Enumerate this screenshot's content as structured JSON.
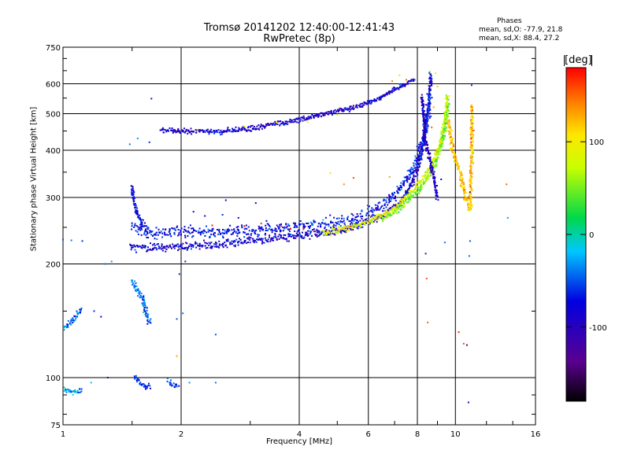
{
  "header": {
    "title": "Tromsø 20141202 12:40:00-12:41:43",
    "subtitle": "RwPretec (8p)",
    "stats_title": "Phases",
    "stats_o": "mean, sd,O: -77.9, 21.8",
    "stats_x": "mean, sd,X: 88.4, 27.2"
  },
  "chart_data": {
    "type": "scatter",
    "xlabel": "Frequency [MHz]",
    "ylabel": "Stationary phase Virtual Height [km]",
    "xscale": "log",
    "yscale": "log",
    "xlim": [
      1,
      16
    ],
    "ylim": [
      75,
      750
    ],
    "x_ticks": [
      1,
      2,
      4,
      6,
      8,
      10,
      16
    ],
    "x_tick_labels": [
      "1",
      "2",
      "4",
      "6",
      "8",
      "10",
      "16"
    ],
    "y_ticks": [
      75,
      100,
      200,
      300,
      400,
      500,
      600,
      750
    ],
    "y_tick_labels": [
      "75",
      "100",
      "200",
      "300",
      "400",
      "500",
      "600",
      "750"
    ],
    "grid": true,
    "colorbar": {
      "label": "[deg]",
      "range": [
        -180,
        180
      ],
      "ticks": [
        100,
        0,
        -100
      ],
      "tick_labels": [
        "100",
        "0",
        "-100"
      ]
    },
    "traces": [
      {
        "name": "",
        "phase": -85,
        "spread": 0.012,
        "points": [
          [
            1.48,
            222
          ],
          [
            1.7,
            221
          ],
          [
            2.0,
            222
          ],
          [
            2.5,
            225
          ],
          [
            3.0,
            230
          ],
          [
            3.5,
            234
          ],
          [
            4.0,
            238
          ],
          [
            4.5,
            241
          ],
          [
            5.0,
            244
          ],
          [
            5.5,
            250
          ],
          [
            6.0,
            258
          ],
          [
            6.5,
            268
          ],
          [
            7.0,
            282
          ],
          [
            7.4,
            300
          ],
          [
            7.8,
            330
          ],
          [
            8.1,
            370
          ],
          [
            8.3,
            420
          ],
          [
            8.45,
            470
          ],
          [
            8.55,
            520
          ],
          [
            8.62,
            580
          ],
          [
            8.65,
            640
          ]
        ]
      },
      {
        "name": "",
        "phase": -70,
        "spread": 0.018,
        "points": [
          [
            1.5,
            250
          ],
          [
            1.7,
            240
          ],
          [
            2.0,
            245
          ],
          [
            2.4,
            242
          ],
          [
            3.0,
            245
          ],
          [
            3.5,
            248
          ],
          [
            4.0,
            250
          ],
          [
            4.5,
            253
          ],
          [
            5.0,
            257
          ],
          [
            5.5,
            263
          ],
          [
            6.0,
            272
          ],
          [
            6.5,
            285
          ],
          [
            7.0,
            305
          ],
          [
            7.5,
            335
          ],
          [
            7.9,
            370
          ],
          [
            8.2,
            410
          ],
          [
            8.4,
            460
          ],
          [
            8.55,
            520
          ],
          [
            8.6,
            560
          ]
        ]
      },
      {
        "name": "",
        "phase": -90,
        "spread": 0.008,
        "points": [
          [
            1.78,
            455
          ],
          [
            2.0,
            450
          ],
          [
            2.4,
            448
          ],
          [
            2.8,
            452
          ],
          [
            3.2,
            462
          ],
          [
            3.6,
            472
          ],
          [
            4.0,
            482
          ],
          [
            4.5,
            496
          ],
          [
            5.0,
            508
          ],
          [
            5.5,
            520
          ],
          [
            6.0,
            535
          ],
          [
            6.5,
            555
          ],
          [
            7.0,
            580
          ],
          [
            7.5,
            600
          ],
          [
            7.9,
            620
          ]
        ]
      },
      {
        "name": "",
        "phase": 85,
        "spread": 0.01,
        "points": [
          [
            4.6,
            242
          ],
          [
            5.0,
            246
          ],
          [
            5.5,
            251
          ],
          [
            6.0,
            258
          ],
          [
            6.5,
            268
          ],
          [
            7.0,
            282
          ],
          [
            7.5,
            300
          ],
          [
            8.0,
            322
          ],
          [
            8.4,
            345
          ],
          [
            8.8,
            375
          ],
          [
            9.1,
            410
          ],
          [
            9.3,
            450
          ],
          [
            9.45,
            500
          ],
          [
            9.55,
            560
          ]
        ]
      },
      {
        "name": "",
        "phase": 50,
        "spread": 0.01,
        "points": [
          [
            6.5,
            262
          ],
          [
            7.0,
            275
          ],
          [
            7.5,
            292
          ],
          [
            8.0,
            312
          ],
          [
            8.4,
            332
          ],
          [
            8.8,
            360
          ],
          [
            9.1,
            395
          ],
          [
            9.35,
            440
          ],
          [
            9.5,
            490
          ],
          [
            9.6,
            540
          ]
        ]
      },
      {
        "name": "",
        "phase": -95,
        "spread": 0.01,
        "points": [
          [
            8.2,
            560
          ],
          [
            8.3,
            500
          ],
          [
            8.35,
            450
          ],
          [
            8.4,
            420
          ],
          [
            8.55,
            390
          ],
          [
            8.7,
            360
          ],
          [
            8.8,
            340
          ],
          [
            8.9,
            320
          ],
          [
            9.0,
            300
          ]
        ]
      },
      {
        "name": "",
        "phase": -75,
        "spread": 0.01,
        "points": [
          [
            1.5,
            320
          ],
          [
            1.52,
            290
          ],
          [
            1.55,
            270
          ],
          [
            1.6,
            255
          ],
          [
            1.65,
            245
          ]
        ]
      },
      {
        "name": "",
        "phase": -45,
        "spread": 0.012,
        "points": [
          [
            1.5,
            180
          ],
          [
            1.55,
            170
          ],
          [
            1.6,
            162
          ],
          [
            1.62,
            150
          ],
          [
            1.65,
            142
          ],
          [
            1.68,
            140
          ]
        ]
      },
      {
        "name": "",
        "phase": -40,
        "spread": 0.01,
        "points": [
          [
            1.0,
            135
          ],
          [
            1.05,
            140
          ],
          [
            1.1,
            150
          ],
          [
            1.12,
            148
          ]
        ]
      },
      {
        "name": "",
        "phase": -30,
        "spread": 0.008,
        "points": [
          [
            1.0,
            93
          ],
          [
            1.06,
            92
          ],
          [
            1.12,
            93
          ]
        ]
      },
      {
        "name": "",
        "phase": -60,
        "spread": 0.01,
        "points": [
          [
            1.52,
            100
          ],
          [
            1.6,
            96
          ],
          [
            1.67,
            94
          ]
        ]
      },
      {
        "name": "",
        "phase": -55,
        "spread": 0.01,
        "points": [
          [
            1.85,
            98
          ],
          [
            1.92,
            95
          ],
          [
            1.97,
            96
          ]
        ]
      },
      {
        "name": "",
        "phase": 120,
        "spread": 0.012,
        "points": [
          [
            9.6,
            480
          ],
          [
            9.7,
            440
          ],
          [
            9.8,
            410
          ],
          [
            10.0,
            380
          ],
          [
            10.3,
            350
          ],
          [
            10.6,
            300
          ],
          [
            10.9,
            280
          ],
          [
            11.0,
            420
          ],
          [
            11.05,
            520
          ]
        ]
      }
    ],
    "scattered_points": [
      [
        1.0,
        232,
        -50
      ],
      [
        1.05,
        231,
        -40
      ],
      [
        1.12,
        230,
        -60
      ],
      [
        1.28,
        200,
        -40
      ],
      [
        1.33,
        203,
        -30
      ],
      [
        1.2,
        150,
        -60
      ],
      [
        1.25,
        145,
        -70
      ],
      [
        1.18,
        97,
        -20
      ],
      [
        1.3,
        100,
        -100
      ],
      [
        1.48,
        415,
        -40
      ],
      [
        1.55,
        430,
        -30
      ],
      [
        1.66,
        420,
        -60
      ],
      [
        1.68,
        548,
        -140
      ],
      [
        1.95,
        143,
        -50
      ],
      [
        1.95,
        114,
        130
      ],
      [
        1.98,
        188,
        -60
      ],
      [
        2.02,
        148,
        -40
      ],
      [
        2.05,
        203,
        -60
      ],
      [
        2.1,
        97,
        -30
      ],
      [
        2.15,
        275,
        -90
      ],
      [
        2.3,
        268,
        -80
      ],
      [
        2.45,
        130,
        -50
      ],
      [
        2.45,
        97,
        -40
      ],
      [
        2.55,
        270,
        -60
      ],
      [
        2.6,
        295,
        -70
      ],
      [
        2.8,
        265,
        -80
      ],
      [
        3.1,
        290,
        -90
      ],
      [
        3.3,
        260,
        -70
      ],
      [
        4.8,
        348,
        110
      ],
      [
        5.2,
        325,
        140
      ],
      [
        5.5,
        338,
        160
      ],
      [
        6.8,
        340,
        130
      ],
      [
        8.4,
        213,
        -140
      ],
      [
        8.45,
        183,
        160
      ],
      [
        8.5,
        140,
        150
      ],
      [
        9.4,
        228,
        -40
      ],
      [
        9.2,
        335,
        -80
      ],
      [
        9.5,
        450,
        60
      ],
      [
        10.2,
        132,
        170
      ],
      [
        10.5,
        123,
        160
      ],
      [
        10.7,
        122,
        -140
      ],
      [
        10.8,
        86,
        -110
      ],
      [
        10.9,
        230,
        -50
      ],
      [
        10.85,
        210,
        -40
      ],
      [
        11.0,
        595,
        -60
      ],
      [
        10.9,
        310,
        -150
      ],
      [
        13.5,
        325,
        150
      ],
      [
        13.6,
        265,
        -30
      ],
      [
        7.2,
        632,
        110
      ],
      [
        6.9,
        610,
        140
      ],
      [
        7.5,
        615,
        150
      ],
      [
        5.0,
        497,
        80
      ],
      [
        4.2,
        475,
        90
      ],
      [
        3.5,
        474,
        100
      ],
      [
        2.2,
        452,
        110
      ],
      [
        2.9,
        462,
        80
      ],
      [
        3.8,
        248,
        170
      ],
      [
        4.1,
        247,
        160
      ],
      [
        3.6,
        252,
        170
      ],
      [
        4.4,
        244,
        175
      ],
      [
        5.4,
        252,
        165
      ],
      [
        6.0,
        262,
        150
      ],
      [
        2.4,
        253,
        170
      ],
      [
        3.2,
        256,
        165
      ],
      [
        2.9,
        252,
        180
      ],
      [
        8.7,
        460,
        150
      ],
      [
        8.8,
        520,
        130
      ],
      [
        9.0,
        590,
        120
      ],
      [
        8.9,
        640,
        110
      ],
      [
        8.6,
        645,
        40
      ]
    ]
  }
}
